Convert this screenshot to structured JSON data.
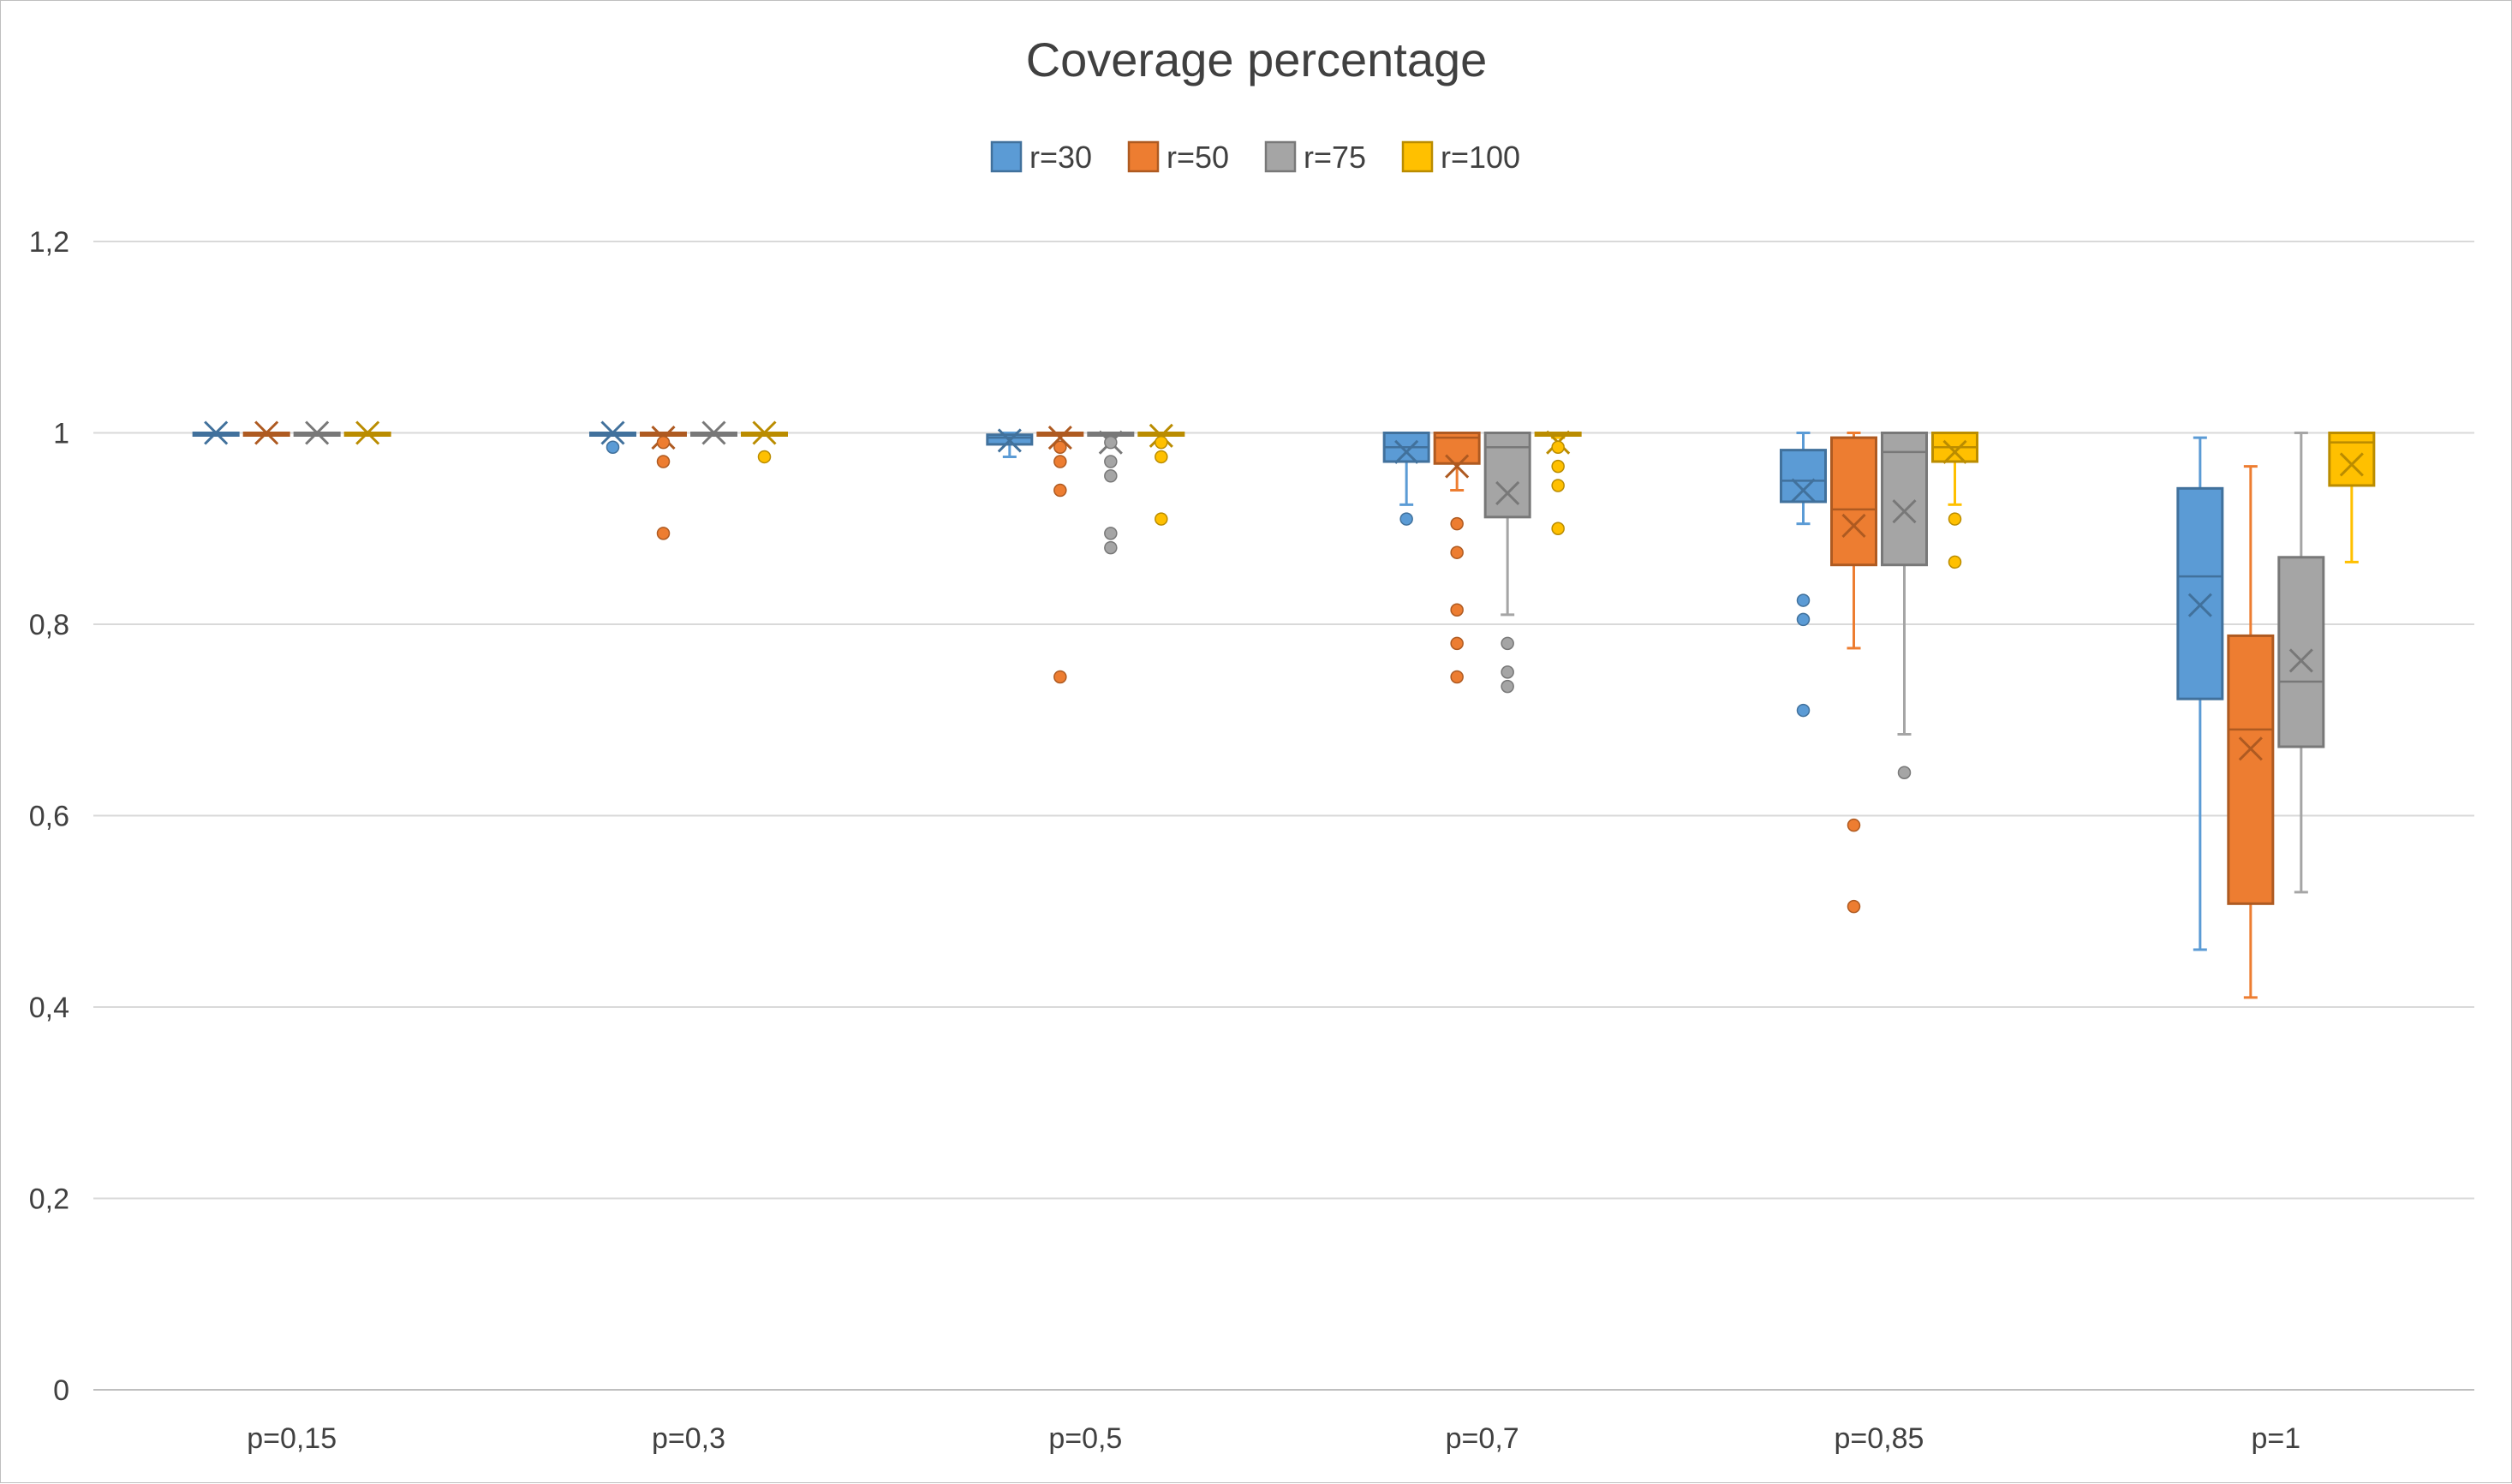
{
  "chart_data": {
    "type": "box",
    "title": "Coverage percentage",
    "categories": [
      "p=0,15",
      "p=0,3",
      "p=0,5",
      "p=0,7",
      "p=0,85",
      "p=1"
    ],
    "y_ticks": [
      "0",
      "0,2",
      "0,4",
      "0,6",
      "0,8",
      "1",
      "1,2"
    ],
    "ylim": [
      0,
      1.2
    ],
    "grid": true,
    "legend_position": "top",
    "series": [
      {
        "name": "r=30",
        "color": "#5B9BD5",
        "stroke": "#41719C",
        "boxes": [
          {
            "min": 1.0,
            "q1": 1.0,
            "median": 1.0,
            "q3": 1.0,
            "max": 1.0,
            "mean": 1.0,
            "outliers": []
          },
          {
            "min": 1.0,
            "q1": 1.0,
            "median": 1.0,
            "q3": 1.0,
            "max": 1.0,
            "mean": 1.0,
            "outliers": [
              0.985
            ]
          },
          {
            "min": 0.975,
            "q1": 0.988,
            "median": 0.995,
            "q3": 0.998,
            "max": 1.0,
            "mean": 0.992,
            "outliers": []
          },
          {
            "min": 0.925,
            "q1": 0.97,
            "median": 0.985,
            "q3": 1.0,
            "max": 1.0,
            "mean": 0.98,
            "outliers": [
              0.91
            ]
          },
          {
            "min": 0.905,
            "q1": 0.928,
            "median": 0.95,
            "q3": 0.982,
            "max": 1.0,
            "mean": 0.94,
            "outliers": [
              0.825,
              0.805,
              0.71
            ]
          },
          {
            "min": 0.46,
            "q1": 0.722,
            "median": 0.85,
            "q3": 0.942,
            "max": 0.995,
            "mean": 0.82,
            "outliers": []
          }
        ]
      },
      {
        "name": "r=50",
        "color": "#ED7D31",
        "stroke": "#AE5A21",
        "boxes": [
          {
            "min": 1.0,
            "q1": 1.0,
            "median": 1.0,
            "q3": 1.0,
            "max": 1.0,
            "mean": 1.0,
            "outliers": []
          },
          {
            "min": 1.0,
            "q1": 1.0,
            "median": 1.0,
            "q3": 1.0,
            "max": 1.0,
            "mean": 0.995,
            "outliers": [
              0.99,
              0.97,
              0.895
            ]
          },
          {
            "min": 1.0,
            "q1": 1.0,
            "median": 1.0,
            "q3": 1.0,
            "max": 1.0,
            "mean": 0.995,
            "outliers": [
              0.985,
              0.97,
              0.94,
              0.745
            ]
          },
          {
            "min": 0.94,
            "q1": 0.968,
            "median": 0.995,
            "q3": 1.0,
            "max": 1.0,
            "mean": 0.965,
            "outliers": [
              0.905,
              0.875,
              0.815,
              0.78,
              0.745
            ]
          },
          {
            "min": 0.775,
            "q1": 0.862,
            "median": 0.92,
            "q3": 0.995,
            "max": 1.0,
            "mean": 0.903,
            "outliers": [
              0.59,
              0.505
            ]
          },
          {
            "min": 0.41,
            "q1": 0.508,
            "median": 0.69,
            "q3": 0.788,
            "max": 0.965,
            "mean": 0.67,
            "outliers": []
          }
        ]
      },
      {
        "name": "r=75",
        "color": "#A5A5A5",
        "stroke": "#787878",
        "boxes": [
          {
            "min": 1.0,
            "q1": 1.0,
            "median": 1.0,
            "q3": 1.0,
            "max": 1.0,
            "mean": 1.0,
            "outliers": []
          },
          {
            "min": 1.0,
            "q1": 1.0,
            "median": 1.0,
            "q3": 1.0,
            "max": 1.0,
            "mean": 1.0,
            "outliers": []
          },
          {
            "min": 0.998,
            "q1": 0.998,
            "median": 1.0,
            "q3": 1.0,
            "max": 1.0,
            "mean": 0.99,
            "outliers": [
              0.99,
              0.97,
              0.955,
              0.895,
              0.88
            ]
          },
          {
            "min": 0.81,
            "q1": 0.912,
            "median": 0.985,
            "q3": 1.0,
            "max": 1.0,
            "mean": 0.937,
            "outliers": [
              0.78,
              0.75,
              0.735
            ]
          },
          {
            "min": 0.685,
            "q1": 0.862,
            "median": 0.98,
            "q3": 1.0,
            "max": 1.0,
            "mean": 0.918,
            "outliers": [
              0.645
            ]
          },
          {
            "min": 0.52,
            "q1": 0.672,
            "median": 0.74,
            "q3": 0.87,
            "max": 1.0,
            "mean": 0.762,
            "outliers": []
          }
        ]
      },
      {
        "name": "r=100",
        "color": "#FFC000",
        "stroke": "#BA8C00",
        "boxes": [
          {
            "min": 1.0,
            "q1": 1.0,
            "median": 1.0,
            "q3": 1.0,
            "max": 1.0,
            "mean": 1.0,
            "outliers": []
          },
          {
            "min": 1.0,
            "q1": 1.0,
            "median": 1.0,
            "q3": 1.0,
            "max": 1.0,
            "mean": 1.0,
            "outliers": [
              0.975
            ]
          },
          {
            "min": 1.0,
            "q1": 1.0,
            "median": 1.0,
            "q3": 1.0,
            "max": 1.0,
            "mean": 0.997,
            "outliers": [
              0.99,
              0.975,
              0.91
            ]
          },
          {
            "min": 0.995,
            "q1": 0.998,
            "median": 1.0,
            "q3": 1.0,
            "max": 1.0,
            "mean": 0.99,
            "outliers": [
              0.985,
              0.965,
              0.945,
              0.9
            ]
          },
          {
            "min": 0.925,
            "q1": 0.97,
            "median": 0.985,
            "q3": 1.0,
            "max": 1.0,
            "mean": 0.98,
            "outliers": [
              0.91,
              0.865
            ]
          },
          {
            "min": 0.865,
            "q1": 0.945,
            "median": 0.99,
            "q3": 1.0,
            "max": 1.0,
            "mean": 0.967,
            "outliers": []
          }
        ]
      }
    ]
  }
}
